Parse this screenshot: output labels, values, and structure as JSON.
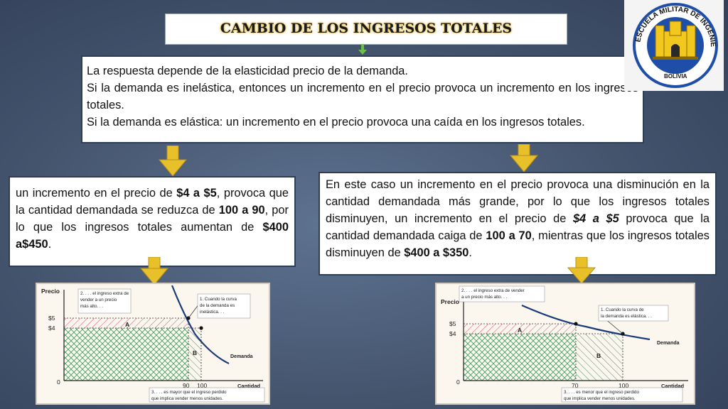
{
  "title": "CAMBIO DE LOS INGRESOS TOTALES",
  "intro": {
    "line1": "La respuesta depende de la elasticidad precio de la demanda.",
    "line2": "Si la demanda es inelástica, entonces un incremento en el precio provoca un incremento en los ingresos totales.",
    "line3": "Si la demanda es elástica: un incremento en el precio provoca una caída en los ingresos totales."
  },
  "left_text": {
    "p1": " un incremento en el precio de ",
    "b1": "$4 a $5",
    "p2": ", provoca que la cantidad demandada se reduzca de ",
    "b2": "100 a 90",
    "p3": ", por lo que los ingresos totales aumentan de ",
    "b3": "$400 a$450",
    "p4": "."
  },
  "right_text": {
    "p1": "En este caso un incremento en el precio provoca una disminución en la cantidad demandada más grande, por lo que los ingresos totales disminuyen, un incremento en el precio de ",
    "b1": "$4 a $5",
    "p2": " provoca que la cantidad demandada caiga de ",
    "b2": "100 a 70",
    "p3": ", mientras que los ingresos totales disminuyen de ",
    "b3": "$400 a $350",
    "p4": "."
  },
  "graph_left": {
    "y_label": "Precio",
    "x_label": "Cantidad",
    "tick_5": "$5",
    "tick_4": "$4",
    "tick_0": "0",
    "tick_q1": "90",
    "tick_q2": "100",
    "label_a": "A",
    "label_b": "B",
    "curve_label": "Demanda",
    "note2_l1": "2. . . . el ingreso extra de",
    "note2_l2": "vender a un precio",
    "note2_l3": "más alto. . .",
    "note1_l1": "1. Cuando la curva",
    "note1_l2": "de la demanda es",
    "note1_l3": "inelástica. . .",
    "note3_l1": "3. . . . es mayor que el ingreso perdido",
    "note3_l2": "que implica vender menos unidades."
  },
  "graph_right": {
    "y_label": "Precio",
    "x_label": "Cantidad",
    "tick_5": "$5",
    "tick_4": "$4",
    "tick_0": "0",
    "tick_q1": "70",
    "tick_q2": "100",
    "label_a": "A",
    "label_b": "B",
    "curve_label": "Demanda",
    "note2_l1": "2. . . . el ingreso extra de vender",
    "note2_l2": "a un precio más alto. . .",
    "note1_l1": "1. Cuando la curva de",
    "note1_l2": "la demanda es elástica. . .",
    "note3_l1": "3. . . . es menor que el ingreso perdido",
    "note3_l2": "que implica vender menos unidades."
  },
  "logo": {
    "top_text": "ESCUELA MILITAR DE INGENIERIA",
    "bottom_text": "BOLIVIA"
  },
  "colors": {
    "arrow": "#e8c02a",
    "hatch_a": "#d64a6a",
    "hatch_b": "#3a9a5a"
  }
}
